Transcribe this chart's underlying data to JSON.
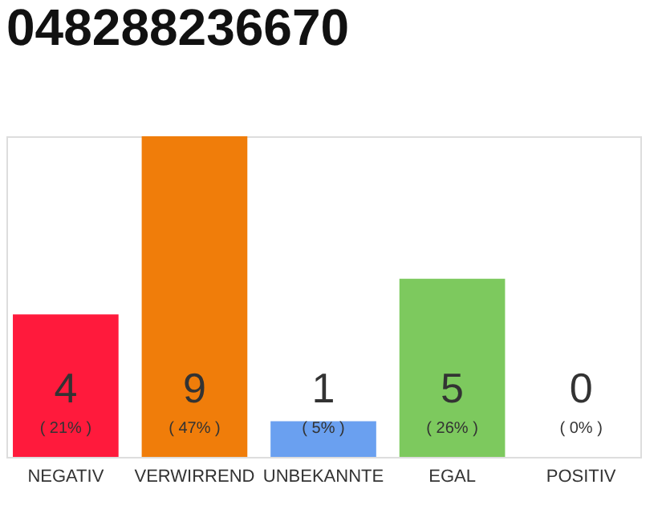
{
  "chart_data": {
    "type": "bar",
    "title": "048288236670",
    "categories": [
      "NEGATIV",
      "VERWIRREND",
      "UNBEKANNTE",
      "EGAL",
      "POSITIV"
    ],
    "values": [
      4,
      9,
      1,
      5,
      0
    ],
    "colors": [
      "#ff1a3c",
      "#f07d0a",
      "#6aa0f0",
      "#7dc95e",
      "#cccccc"
    ],
    "data_labels": true,
    "annotations": [
      "( 21% )",
      "( 47% )",
      "( 5% )",
      "( 26% )",
      "( 0% )"
    ],
    "grid": false
  }
}
